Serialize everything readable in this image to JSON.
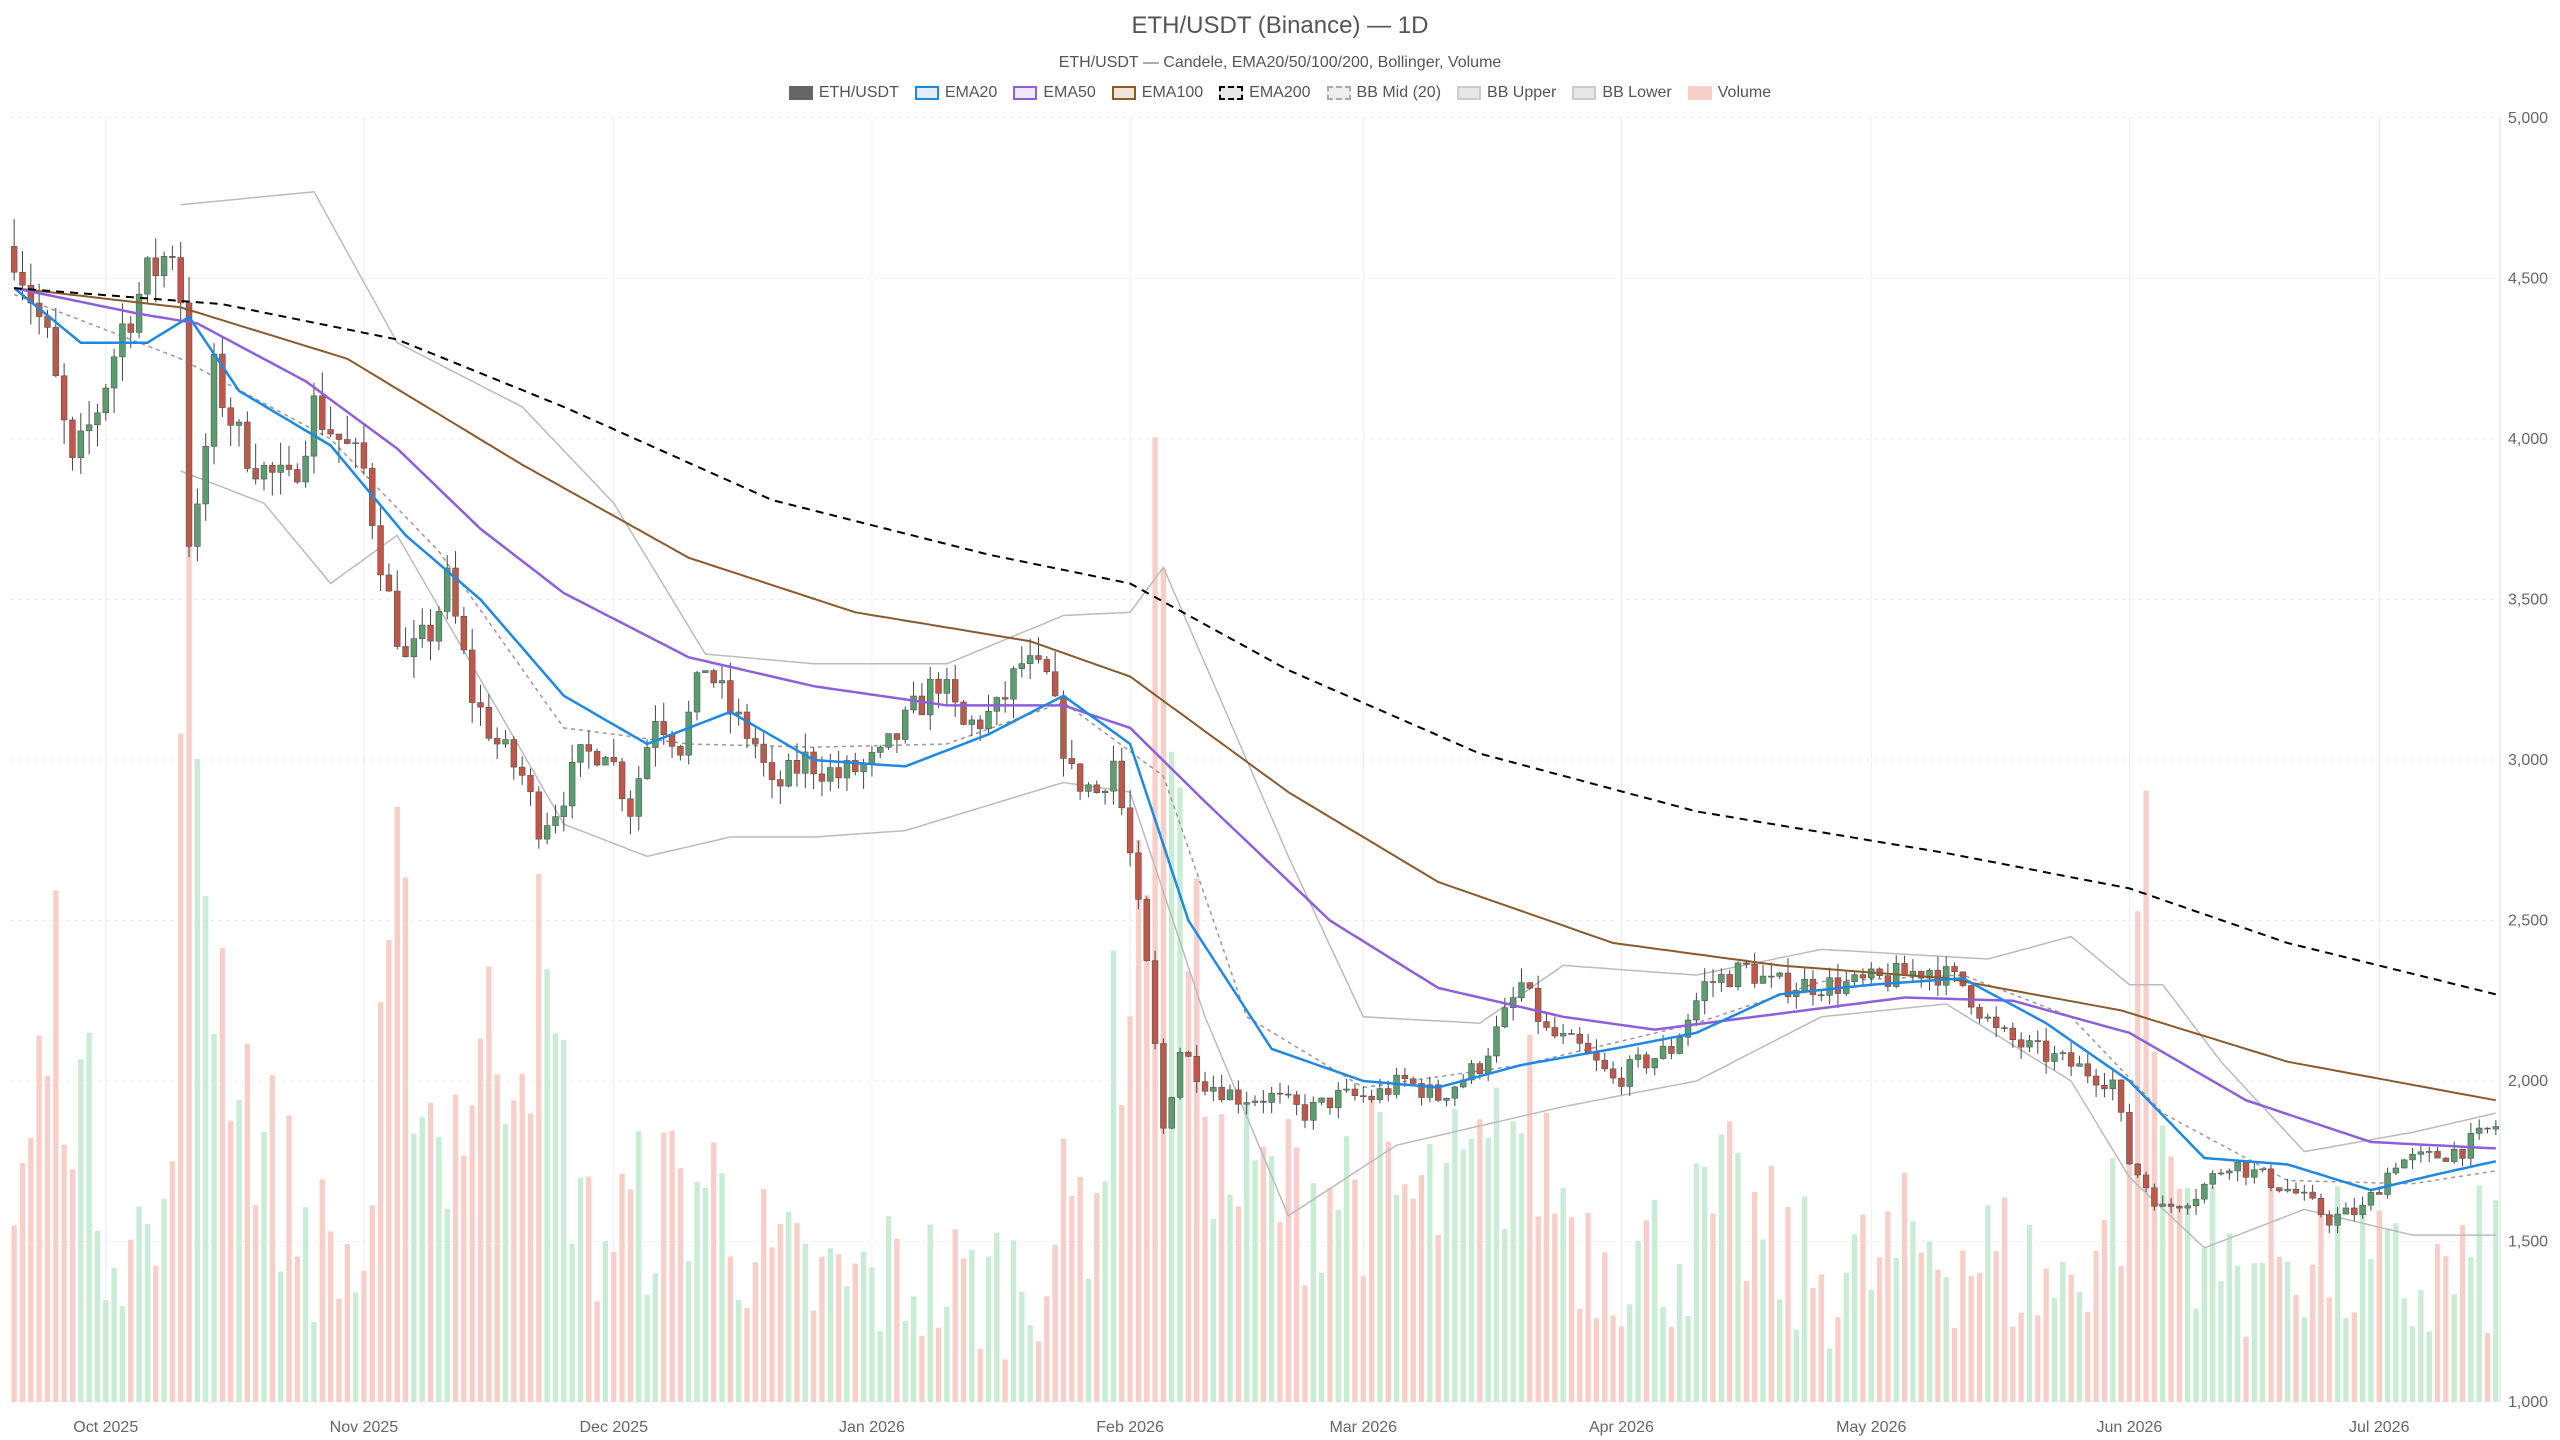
{
  "chart_data": {
    "type": "candlestick",
    "title": "ETH/USDT (Binance) — 1D",
    "subtitle": "ETH/USDT — Candele, EMA20/50/100/200, Bollinger, Volume",
    "yaxis": {
      "min": 1000,
      "max": 5000,
      "ticks": [
        "1,000",
        "1,500",
        "2,000",
        "2,500",
        "3,000",
        "3,500",
        "4,000",
        "4,500",
        "5,000"
      ],
      "tick_values": [
        1000,
        1500,
        2000,
        2500,
        3000,
        3500,
        4000,
        4500,
        5000
      ]
    },
    "xaxis": {
      "start": "2025-09-20",
      "end": "2026-07-15",
      "ticks": [
        {
          "date": "2025-10-01",
          "label": "Oct 2025"
        },
        {
          "date": "2025-11-01",
          "label": "Nov 2025"
        },
        {
          "date": "2025-12-01",
          "label": "Dec 2025"
        },
        {
          "date": "2026-01-01",
          "label": "Jan 2026"
        },
        {
          "date": "2026-02-01",
          "label": "Feb 2026"
        },
        {
          "date": "2026-03-01",
          "label": "Mar 2026"
        },
        {
          "date": "2026-04-01",
          "label": "Apr 2026"
        },
        {
          "date": "2026-05-01",
          "label": "May 2026"
        },
        {
          "date": "2026-06-01",
          "label": "Jun 2026"
        },
        {
          "date": "2026-07-01",
          "label": "Jul 2026"
        }
      ]
    },
    "grid": true,
    "legend_position": "top-center",
    "legend": [
      {
        "key": "price",
        "label": "ETH/USDT"
      },
      {
        "key": "ema20",
        "label": "EMA20"
      },
      {
        "key": "ema50",
        "label": "EMA50"
      },
      {
        "key": "ema100",
        "label": "EMA100"
      },
      {
        "key": "ema200",
        "label": "EMA200"
      },
      {
        "key": "bbmid",
        "label": "BB Mid (20)"
      },
      {
        "key": "bbupper",
        "label": "BB Upper"
      },
      {
        "key": "bblower",
        "label": "BB Lower"
      },
      {
        "key": "volume",
        "label": "Volume"
      }
    ],
    "colors": {
      "up": "#5a9e6f",
      "down": "#c0584a",
      "ema20": "#1e88e5",
      "ema50": "#8e5fdc",
      "ema100": "#8b5a2b",
      "ema200": "#000000",
      "bb": "#bbbbbb",
      "bbmid": "#999999",
      "vol_up": "#c8ecd4",
      "vol_down": "#f8cfc8",
      "grid": "#eeeeee",
      "legend_price": "#666666"
    },
    "price_anchors": [
      [
        "2025-09-20",
        4600
      ],
      [
        "2025-09-24",
        4300
      ],
      [
        "2025-09-27",
        3900
      ],
      [
        "2025-09-30",
        4100
      ],
      [
        "2025-10-03",
        4350
      ],
      [
        "2025-10-06",
        4500
      ],
      [
        "2025-10-09",
        4600
      ],
      [
        "2025-10-10",
        4450
      ],
      [
        "2025-10-11",
        3700
      ],
      [
        "2025-10-12",
        3750
      ],
      [
        "2025-10-14",
        4200
      ],
      [
        "2025-10-17",
        4000
      ],
      [
        "2025-10-20",
        3900
      ],
      [
        "2025-10-23",
        3850
      ],
      [
        "2025-10-26",
        4100
      ],
      [
        "2025-10-29",
        4000
      ],
      [
        "2025-11-01",
        3900
      ],
      [
        "2025-11-04",
        3500
      ],
      [
        "2025-11-06",
        3300
      ],
      [
        "2025-11-09",
        3400
      ],
      [
        "2025-11-11",
        3550
      ],
      [
        "2025-11-14",
        3200
      ],
      [
        "2025-11-17",
        3050
      ],
      [
        "2025-11-20",
        2950
      ],
      [
        "2025-11-22",
        2800
      ],
      [
        "2025-11-24",
        2850
      ],
      [
        "2025-11-27",
        3000
      ],
      [
        "2025-11-30",
        3050
      ],
      [
        "2025-12-03",
        2850
      ],
      [
        "2025-12-06",
        3150
      ],
      [
        "2025-12-09",
        3050
      ],
      [
        "2025-12-12",
        3300
      ],
      [
        "2025-12-15",
        3150
      ],
      [
        "2025-12-18",
        3050
      ],
      [
        "2025-12-20",
        2900
      ],
      [
        "2025-12-24",
        3000
      ],
      [
        "2025-12-28",
        2950
      ],
      [
        "2026-01-02",
        3000
      ],
      [
        "2026-01-06",
        3150
      ],
      [
        "2026-01-09",
        3250
      ],
      [
        "2026-01-12",
        3100
      ],
      [
        "2026-01-16",
        3150
      ],
      [
        "2026-01-19",
        3300
      ],
      [
        "2026-01-22",
        3250
      ],
      [
        "2026-01-25",
        2950
      ],
      [
        "2026-01-28",
        2900
      ],
      [
        "2026-01-30",
        3000
      ],
      [
        "2026-02-01",
        2700
      ],
      [
        "2026-02-03",
        2350
      ],
      [
        "2026-02-05",
        1850
      ],
      [
        "2026-02-07",
        2100
      ],
      [
        "2026-02-10",
        2000
      ],
      [
        "2026-02-14",
        1950
      ],
      [
        "2026-02-18",
        1950
      ],
      [
        "2026-02-22",
        1900
      ],
      [
        "2026-02-26",
        1950
      ],
      [
        "2026-03-02",
        1950
      ],
      [
        "2026-03-06",
        2000
      ],
      [
        "2026-03-10",
        1950
      ],
      [
        "2026-03-15",
        2050
      ],
      [
        "2026-03-20",
        2300
      ],
      [
        "2026-03-23",
        2150
      ],
      [
        "2026-03-27",
        2100
      ],
      [
        "2026-03-31",
        2000
      ],
      [
        "2026-04-03",
        2050
      ],
      [
        "2026-04-07",
        2100
      ],
      [
        "2026-04-11",
        2300
      ],
      [
        "2026-04-16",
        2350
      ],
      [
        "2026-04-19",
        2300
      ],
      [
        "2026-04-24",
        2300
      ],
      [
        "2026-04-29",
        2300
      ],
      [
        "2026-05-03",
        2320
      ],
      [
        "2026-05-08",
        2350
      ],
      [
        "2026-05-12",
        2300
      ],
      [
        "2026-05-16",
        2150
      ],
      [
        "2026-05-20",
        2100
      ],
      [
        "2026-05-25",
        2050
      ],
      [
        "2026-05-30",
        2000
      ],
      [
        "2026-06-01",
        1750
      ],
      [
        "2026-06-05",
        1600
      ],
      [
        "2026-06-09",
        1650
      ],
      [
        "2026-06-13",
        1750
      ],
      [
        "2026-06-17",
        1700
      ],
      [
        "2026-06-21",
        1650
      ],
      [
        "2026-06-25",
        1570
      ],
      [
        "2026-06-29",
        1600
      ],
      [
        "2026-07-03",
        1750
      ],
      [
        "2026-07-07",
        1760
      ],
      [
        "2026-07-11",
        1790
      ],
      [
        "2026-07-15",
        1860
      ]
    ],
    "volume_anchors": [
      [
        "2025-09-20",
        1500
      ],
      [
        "2025-09-25",
        2300
      ],
      [
        "2025-10-01",
        1600
      ],
      [
        "2025-10-08",
        1450
      ],
      [
        "2025-10-11",
        3400
      ],
      [
        "2025-10-14",
        2400
      ],
      [
        "2025-10-20",
        1800
      ],
      [
        "2025-10-26",
        1500
      ],
      [
        "2025-11-01",
        1400
      ],
      [
        "2025-11-05",
        2450
      ],
      [
        "2025-11-10",
        1800
      ],
      [
        "2025-11-16",
        2100
      ],
      [
        "2025-11-22",
        2300
      ],
      [
        "2025-11-28",
        1500
      ],
      [
        "2025-12-05",
        1600
      ],
      [
        "2025-12-12",
        1700
      ],
      [
        "2025-12-20",
        1400
      ],
      [
        "2025-12-28",
        1350
      ],
      [
        "2026-01-05",
        1400
      ],
      [
        "2026-01-12",
        1350
      ],
      [
        "2026-01-20",
        1400
      ],
      [
        "2026-01-28",
        1700
      ],
      [
        "2026-02-03",
        2800
      ],
      [
        "2026-02-05",
        4100
      ],
      [
        "2026-02-07",
        2600
      ],
      [
        "2026-02-12",
        1700
      ],
      [
        "2026-02-20",
        1650
      ],
      [
        "2026-02-28",
        1700
      ],
      [
        "2026-03-08",
        1600
      ],
      [
        "2026-03-16",
        1700
      ],
      [
        "2026-03-20",
        1900
      ],
      [
        "2026-03-28",
        1500
      ],
      [
        "2026-04-06",
        1450
      ],
      [
        "2026-04-14",
        1600
      ],
      [
        "2026-04-22",
        1400
      ],
      [
        "2026-04-30",
        1400
      ],
      [
        "2026-05-08",
        1500
      ],
      [
        "2026-05-16",
        1450
      ],
      [
        "2026-05-24",
        1350
      ],
      [
        "2026-06-01",
        1700
      ],
      [
        "2026-06-02",
        2900
      ],
      [
        "2026-06-05",
        1800
      ],
      [
        "2026-06-12",
        1400
      ],
      [
        "2026-06-20",
        1500
      ],
      [
        "2026-06-28",
        1400
      ],
      [
        "2026-07-06",
        1350
      ],
      [
        "2026-07-15",
        1450
      ]
    ],
    "ema_anchors": {
      "ema20": [
        [
          "2025-09-20",
          4470
        ],
        [
          "2025-09-28",
          4300
        ],
        [
          "2025-10-06",
          4300
        ],
        [
          "2025-10-11",
          4380
        ],
        [
          "2025-10-17",
          4150
        ],
        [
          "2025-10-28",
          3980
        ],
        [
          "2025-11-06",
          3700
        ],
        [
          "2025-11-15",
          3500
        ],
        [
          "2025-11-25",
          3200
        ],
        [
          "2025-12-05",
          3050
        ],
        [
          "2025-12-15",
          3150
        ],
        [
          "2025-12-25",
          3000
        ],
        [
          "2026-01-05",
          2980
        ],
        [
          "2026-01-15",
          3080
        ],
        [
          "2026-01-24",
          3200
        ],
        [
          "2026-02-01",
          3050
        ],
        [
          "2026-02-08",
          2500
        ],
        [
          "2026-02-18",
          2100
        ],
        [
          "2026-03-01",
          2000
        ],
        [
          "2026-03-10",
          1980
        ],
        [
          "2026-03-20",
          2050
        ],
        [
          "2026-03-31",
          2100
        ],
        [
          "2026-04-10",
          2150
        ],
        [
          "2026-04-20",
          2270
        ],
        [
          "2026-05-01",
          2300
        ],
        [
          "2026-05-12",
          2320
        ],
        [
          "2026-05-22",
          2180
        ],
        [
          "2026-06-01",
          2000
        ],
        [
          "2026-06-10",
          1760
        ],
        [
          "2026-06-20",
          1740
        ],
        [
          "2026-06-30",
          1660
        ],
        [
          "2026-07-08",
          1710
        ],
        [
          "2026-07-15",
          1750
        ]
      ],
      "ema50": [
        [
          "2025-09-20",
          4470
        ],
        [
          "2025-10-05",
          4390
        ],
        [
          "2025-10-12",
          4360
        ],
        [
          "2025-10-25",
          4180
        ],
        [
          "2025-11-05",
          3970
        ],
        [
          "2025-11-15",
          3720
        ],
        [
          "2025-11-25",
          3520
        ],
        [
          "2025-12-10",
          3320
        ],
        [
          "2025-12-25",
          3230
        ],
        [
          "2026-01-10",
          3170
        ],
        [
          "2026-01-24",
          3170
        ],
        [
          "2026-02-01",
          3100
        ],
        [
          "2026-02-10",
          2870
        ],
        [
          "2026-02-25",
          2500
        ],
        [
          "2026-03-10",
          2290
        ],
        [
          "2026-03-25",
          2200
        ],
        [
          "2026-04-05",
          2160
        ],
        [
          "2026-04-20",
          2210
        ],
        [
          "2026-05-05",
          2260
        ],
        [
          "2026-05-18",
          2250
        ],
        [
          "2026-06-01",
          2150
        ],
        [
          "2026-06-15",
          1940
        ],
        [
          "2026-06-30",
          1810
        ],
        [
          "2026-07-15",
          1790
        ]
      ],
      "ema100": [
        [
          "2025-09-20",
          4470
        ],
        [
          "2025-10-10",
          4410
        ],
        [
          "2025-10-30",
          4250
        ],
        [
          "2025-11-20",
          3920
        ],
        [
          "2025-12-10",
          3630
        ],
        [
          "2025-12-30",
          3460
        ],
        [
          "2026-01-20",
          3370
        ],
        [
          "2026-02-01",
          3260
        ],
        [
          "2026-02-20",
          2900
        ],
        [
          "2026-03-10",
          2620
        ],
        [
          "2026-03-31",
          2430
        ],
        [
          "2026-04-20",
          2360
        ],
        [
          "2026-05-10",
          2320
        ],
        [
          "2026-05-31",
          2220
        ],
        [
          "2026-06-20",
          2060
        ],
        [
          "2026-07-15",
          1940
        ]
      ],
      "ema200": [
        [
          "2025-09-20",
          4470
        ],
        [
          "2025-10-15",
          4420
        ],
        [
          "2025-11-05",
          4310
        ],
        [
          "2025-11-25",
          4100
        ],
        [
          "2025-12-20",
          3810
        ],
        [
          "2026-01-15",
          3640
        ],
        [
          "2026-02-01",
          3550
        ],
        [
          "2026-02-20",
          3280
        ],
        [
          "2026-03-15",
          3020
        ],
        [
          "2026-04-10",
          2840
        ],
        [
          "2026-05-10",
          2710
        ],
        [
          "2026-06-01",
          2600
        ],
        [
          "2026-06-20",
          2430
        ],
        [
          "2026-07-15",
          2270
        ]
      ]
    },
    "bb_anchors": {
      "upper": [
        [
          "2025-10-10",
          4730
        ],
        [
          "2025-10-26",
          4770
        ],
        [
          "2025-11-05",
          4300
        ],
        [
          "2025-11-20",
          4100
        ],
        [
          "2025-12-01",
          3800
        ],
        [
          "2025-12-12",
          3330
        ],
        [
          "2025-12-25",
          3300
        ],
        [
          "2026-01-10",
          3300
        ],
        [
          "2026-01-24",
          3450
        ],
        [
          "2026-02-01",
          3460
        ],
        [
          "2026-02-05",
          3600
        ],
        [
          "2026-02-20",
          2700
        ],
        [
          "2026-03-01",
          2200
        ],
        [
          "2026-03-15",
          2180
        ],
        [
          "2026-03-25",
          2360
        ],
        [
          "2026-04-10",
          2330
        ],
        [
          "2026-04-25",
          2410
        ],
        [
          "2026-05-15",
          2380
        ],
        [
          "2026-05-25",
          2450
        ],
        [
          "2026-06-01",
          2300
        ],
        [
          "2026-06-05",
          2300
        ],
        [
          "2026-06-12",
          2060
        ],
        [
          "2026-06-22",
          1780
        ],
        [
          "2026-07-05",
          1840
        ],
        [
          "2026-07-15",
          1900
        ]
      ],
      "lower": [
        [
          "2025-10-10",
          3900
        ],
        [
          "2025-10-20",
          3800
        ],
        [
          "2025-10-28",
          3550
        ],
        [
          "2025-11-05",
          3700
        ],
        [
          "2025-11-15",
          3250
        ],
        [
          "2025-11-25",
          2800
        ],
        [
          "2025-12-05",
          2700
        ],
        [
          "2025-12-15",
          2760
        ],
        [
          "2025-12-25",
          2760
        ],
        [
          "2026-01-05",
          2780
        ],
        [
          "2026-01-24",
          2930
        ],
        [
          "2026-02-01",
          2900
        ],
        [
          "2026-02-10",
          2200
        ],
        [
          "2026-02-20",
          1580
        ],
        [
          "2026-03-05",
          1800
        ],
        [
          "2026-03-25",
          1920
        ],
        [
          "2026-04-10",
          2000
        ],
        [
          "2026-04-25",
          2200
        ],
        [
          "2026-05-10",
          2240
        ],
        [
          "2026-05-25",
          2000
        ],
        [
          "2026-06-01",
          1700
        ],
        [
          "2026-06-10",
          1480
        ],
        [
          "2026-06-22",
          1600
        ],
        [
          "2026-07-05",
          1520
        ],
        [
          "2026-07-15",
          1520
        ]
      ],
      "mid": [
        [
          "2025-09-20",
          4450
        ],
        [
          "2025-10-10",
          4250
        ],
        [
          "2025-10-28",
          4000
        ],
        [
          "2025-11-10",
          3650
        ],
        [
          "2025-11-25",
          3100
        ],
        [
          "2025-12-10",
          3050
        ],
        [
          "2025-12-25",
          3040
        ],
        [
          "2026-01-10",
          3050
        ],
        [
          "2026-01-24",
          3180
        ],
        [
          "2026-02-05",
          2950
        ],
        [
          "2026-02-15",
          2200
        ],
        [
          "2026-03-01",
          1980
        ],
        [
          "2026-03-20",
          2050
        ],
        [
          "2026-04-10",
          2180
        ],
        [
          "2026-04-25",
          2310
        ],
        [
          "2026-05-12",
          2330
        ],
        [
          "2026-05-25",
          2200
        ],
        [
          "2026-06-05",
          1900
        ],
        [
          "2026-06-20",
          1690
        ],
        [
          "2026-07-05",
          1680
        ],
        [
          "2026-07-15",
          1720
        ]
      ]
    }
  }
}
